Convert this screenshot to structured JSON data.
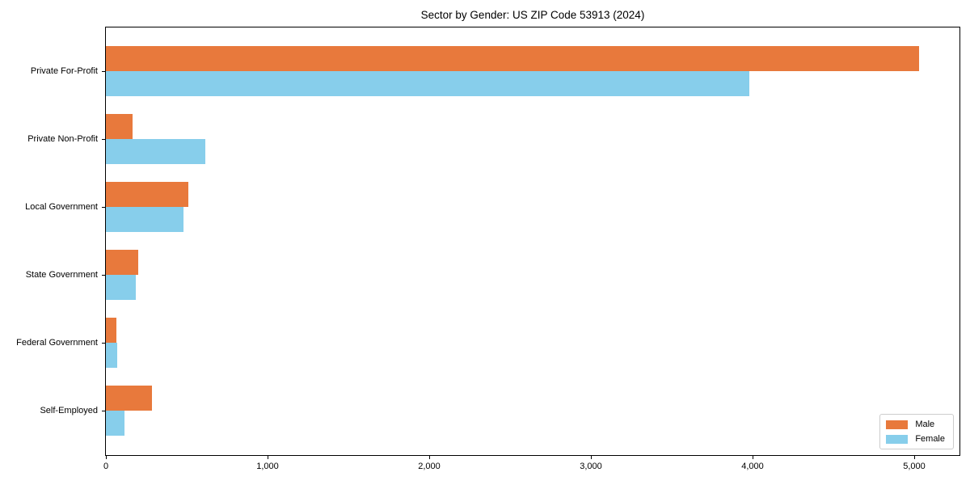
{
  "title": "Sector by Gender: US ZIP Code 53913 (2024)",
  "chart_data": {
    "type": "bar",
    "orientation": "horizontal",
    "title": "Sector by Gender: US ZIP Code 53913 (2024)",
    "categories": [
      "Private For-Profit",
      "Private Non-Profit",
      "Local Government",
      "State Government",
      "Federal Government",
      "Self-Employed"
    ],
    "series": [
      {
        "name": "Male",
        "color": "#E8793C",
        "values": [
          5030,
          165,
          510,
          200,
          65,
          285
        ]
      },
      {
        "name": "Female",
        "color": "#87CEEB",
        "values": [
          3980,
          615,
          480,
          185,
          72,
          115
        ]
      }
    ],
    "xlabel": "",
    "ylabel": "",
    "xlim": [
      0,
      5280
    ],
    "xticks": [
      0,
      1000,
      2000,
      3000,
      4000,
      5000
    ],
    "xtick_labels": [
      "0",
      "1,000",
      "2,000",
      "3,000",
      "4,000",
      "5,000"
    ],
    "grid": false,
    "legend_position": "lower right",
    "legend_border_color": "#cccccc",
    "axis_color": "#000000",
    "background_color": "#ffffff"
  }
}
